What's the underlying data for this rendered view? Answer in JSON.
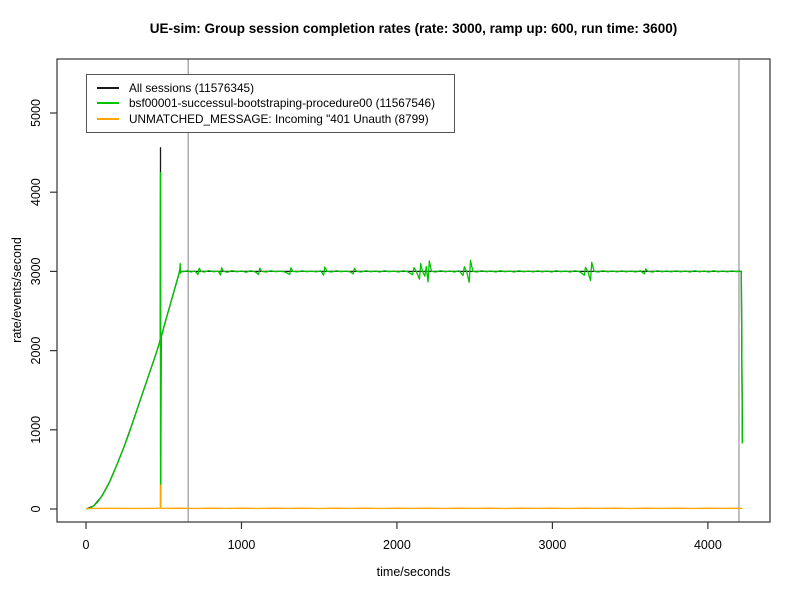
{
  "chart_data": {
    "type": "line",
    "title": "UE-sim: Group session completion rates (rate: 3000, ramp up: 600, run time: 3600)",
    "xlabel": "time/seconds",
    "ylabel": "rate/events/second",
    "x_ticks": [
      0,
      1000,
      2000,
      3000,
      4000
    ],
    "y_ticks": [
      0,
      1000,
      2000,
      3000,
      4000,
      5000
    ],
    "xlim": [
      -186,
      4399
    ],
    "ylim": [
      -164,
      5682
    ],
    "grid": false,
    "legend_position": "top-left",
    "box_color": "#333333",
    "markers": {
      "vlines": [
        657,
        4200
      ],
      "color": "#808080"
    },
    "series": [
      {
        "name": "all-sessions",
        "label": "All sessions (11576345)",
        "color": "#1a1a1a",
        "points": [
          [
            2,
            0
          ],
          [
            50,
            40
          ],
          [
            100,
            155
          ],
          [
            150,
            335
          ],
          [
            200,
            565
          ],
          [
            250,
            815
          ],
          [
            300,
            1090
          ],
          [
            350,
            1380
          ],
          [
            400,
            1670
          ],
          [
            450,
            1960
          ],
          [
            468,
            2070
          ],
          [
            478,
            2140
          ],
          [
            479,
            4560
          ],
          [
            480,
            25
          ],
          [
            484,
            2170
          ],
          [
            520,
            2430
          ],
          [
            560,
            2710
          ],
          [
            595,
            2950
          ],
          [
            602,
            3005
          ],
          [
            613,
            3000
          ],
          [
            2000,
            3000
          ],
          [
            4215,
            3000
          ],
          [
            4222,
            830
          ]
        ]
      },
      {
        "name": "bsf-bootstrapping-success",
        "label": "bsf00001-successul-bootstraping-procedure00 (11567546)",
        "color": "#00C400",
        "points": [
          [
            2,
            0
          ],
          [
            25,
            10
          ],
          [
            50,
            40
          ],
          [
            75,
            90
          ],
          [
            100,
            155
          ],
          [
            125,
            240
          ],
          [
            150,
            335
          ],
          [
            175,
            445
          ],
          [
            200,
            565
          ],
          [
            225,
            690
          ],
          [
            250,
            815
          ],
          [
            275,
            945
          ],
          [
            300,
            1090
          ],
          [
            325,
            1235
          ],
          [
            350,
            1380
          ],
          [
            375,
            1525
          ],
          [
            400,
            1670
          ],
          [
            425,
            1815
          ],
          [
            450,
            1960
          ],
          [
            468,
            2070
          ],
          [
            476,
            2125
          ],
          [
            478,
            2140
          ],
          [
            479,
            4248
          ],
          [
            480,
            25
          ],
          [
            481,
            2080
          ],
          [
            484,
            2170
          ],
          [
            500,
            2290
          ],
          [
            520,
            2430
          ],
          [
            540,
            2570
          ],
          [
            560,
            2710
          ],
          [
            580,
            2850
          ],
          [
            595,
            2950
          ],
          [
            602,
            3005
          ],
          [
            606,
            3100
          ],
          [
            609,
            2975
          ],
          [
            613,
            3000
          ],
          [
            625,
            2995
          ],
          [
            650,
            3008
          ],
          [
            675,
            2992
          ],
          [
            700,
            3005
          ],
          [
            720,
            2960
          ],
          [
            728,
            3040
          ],
          [
            740,
            3000
          ],
          [
            760,
            2992
          ],
          [
            790,
            3010
          ],
          [
            820,
            2995
          ],
          [
            850,
            3005
          ],
          [
            865,
            2955
          ],
          [
            872,
            3045
          ],
          [
            885,
            3000
          ],
          [
            910,
            2990
          ],
          [
            940,
            3010
          ],
          [
            970,
            2995
          ],
          [
            1000,
            3005
          ],
          [
            1030,
            2990
          ],
          [
            1060,
            3008
          ],
          [
            1090,
            2992
          ],
          [
            1110,
            2960
          ],
          [
            1118,
            3042
          ],
          [
            1130,
            3000
          ],
          [
            1160,
            2993
          ],
          [
            1190,
            3008
          ],
          [
            1220,
            2996
          ],
          [
            1250,
            3004
          ],
          [
            1280,
            2992
          ],
          [
            1310,
            2962
          ],
          [
            1318,
            3045
          ],
          [
            1330,
            3000
          ],
          [
            1360,
            2994
          ],
          [
            1390,
            3006
          ],
          [
            1420,
            2996
          ],
          [
            1450,
            3004
          ],
          [
            1480,
            2994
          ],
          [
            1510,
            3006
          ],
          [
            1528,
            2952
          ],
          [
            1536,
            3055
          ],
          [
            1550,
            3000
          ],
          [
            1580,
            2993
          ],
          [
            1610,
            3007
          ],
          [
            1640,
            2996
          ],
          [
            1670,
            3004
          ],
          [
            1700,
            2994
          ],
          [
            1718,
            2968
          ],
          [
            1726,
            3038
          ],
          [
            1740,
            3000
          ],
          [
            1770,
            2993
          ],
          [
            1800,
            3007
          ],
          [
            1830,
            2995
          ],
          [
            1860,
            3005
          ],
          [
            1890,
            2993
          ],
          [
            1920,
            3007
          ],
          [
            1950,
            2996
          ],
          [
            1980,
            3004
          ],
          [
            2010,
            2992
          ],
          [
            2040,
            3008
          ],
          [
            2070,
            2995
          ],
          [
            2100,
            2958
          ],
          [
            2110,
            3048
          ],
          [
            2125,
            2995
          ],
          [
            2145,
            2902
          ],
          [
            2153,
            3098
          ],
          [
            2165,
            3000
          ],
          [
            2180,
            2940
          ],
          [
            2188,
            3060
          ],
          [
            2200,
            2868
          ],
          [
            2208,
            3132
          ],
          [
            2222,
            3000
          ],
          [
            2250,
            2992
          ],
          [
            2280,
            3008
          ],
          [
            2310,
            2995
          ],
          [
            2340,
            3005
          ],
          [
            2370,
            2993
          ],
          [
            2400,
            3007
          ],
          [
            2425,
            2948
          ],
          [
            2433,
            3058
          ],
          [
            2448,
            3000
          ],
          [
            2465,
            2862
          ],
          [
            2473,
            3140
          ],
          [
            2488,
            3000
          ],
          [
            2515,
            2993
          ],
          [
            2545,
            3007
          ],
          [
            2575,
            2995
          ],
          [
            2605,
            3005
          ],
          [
            2635,
            2993
          ],
          [
            2665,
            3007
          ],
          [
            2695,
            2996
          ],
          [
            2725,
            3004
          ],
          [
            2755,
            2993
          ],
          [
            2785,
            3007
          ],
          [
            2815,
            2995
          ],
          [
            2845,
            3005
          ],
          [
            2875,
            2994
          ],
          [
            2905,
            3006
          ],
          [
            2935,
            2995
          ],
          [
            2965,
            3005
          ],
          [
            2995,
            2992
          ],
          [
            3025,
            3008
          ],
          [
            3055,
            2996
          ],
          [
            3085,
            3004
          ],
          [
            3115,
            2993
          ],
          [
            3145,
            3007
          ],
          [
            3175,
            2995
          ],
          [
            3205,
            2952
          ],
          [
            3213,
            3052
          ],
          [
            3228,
            2995
          ],
          [
            3245,
            2885
          ],
          [
            3253,
            3115
          ],
          [
            3268,
            3000
          ],
          [
            3295,
            2993
          ],
          [
            3325,
            3007
          ],
          [
            3355,
            2995
          ],
          [
            3385,
            3005
          ],
          [
            3415,
            2994
          ],
          [
            3445,
            3006
          ],
          [
            3475,
            2995
          ],
          [
            3505,
            3005
          ],
          [
            3535,
            2993
          ],
          [
            3565,
            3007
          ],
          [
            3592,
            2968
          ],
          [
            3600,
            3032
          ],
          [
            3615,
            3000
          ],
          [
            3645,
            2993
          ],
          [
            3675,
            3007
          ],
          [
            3705,
            2995
          ],
          [
            3735,
            3005
          ],
          [
            3765,
            2994
          ],
          [
            3795,
            3006
          ],
          [
            3825,
            2995
          ],
          [
            3855,
            3005
          ],
          [
            3885,
            2993
          ],
          [
            3915,
            3007
          ],
          [
            3945,
            2995
          ],
          [
            3975,
            3005
          ],
          [
            4005,
            2993
          ],
          [
            4035,
            3007
          ],
          [
            4065,
            2995
          ],
          [
            4095,
            3005
          ],
          [
            4125,
            2994
          ],
          [
            4155,
            3006
          ],
          [
            4185,
            2996
          ],
          [
            4205,
            3004
          ],
          [
            4215,
            3000
          ],
          [
            4222,
            830
          ]
        ]
      },
      {
        "name": "unmatched-message",
        "label": "UNMATCHED_MESSAGE: Incoming \"401 Unauth (8799)",
        "color": "#FFA500",
        "points": [
          [
            0,
            6
          ],
          [
            150,
            9
          ],
          [
            300,
            6
          ],
          [
            450,
            9
          ],
          [
            477,
            12
          ],
          [
            479,
            20
          ],
          [
            480,
            300
          ],
          [
            482,
            12
          ],
          [
            490,
            8
          ],
          [
            600,
            10
          ],
          [
            700,
            6
          ],
          [
            800,
            10
          ],
          [
            900,
            7
          ],
          [
            1000,
            10
          ],
          [
            1100,
            6
          ],
          [
            1200,
            10
          ],
          [
            1300,
            7
          ],
          [
            1400,
            10
          ],
          [
            1500,
            6
          ],
          [
            1600,
            10
          ],
          [
            1700,
            7
          ],
          [
            1800,
            10
          ],
          [
            1900,
            6
          ],
          [
            2000,
            10
          ],
          [
            2100,
            7
          ],
          [
            2200,
            10
          ],
          [
            2300,
            6
          ],
          [
            2400,
            10
          ],
          [
            2500,
            7
          ],
          [
            2600,
            10
          ],
          [
            2700,
            6
          ],
          [
            2800,
            10
          ],
          [
            2900,
            7
          ],
          [
            3000,
            10
          ],
          [
            3100,
            6
          ],
          [
            3200,
            10
          ],
          [
            3300,
            7
          ],
          [
            3400,
            10
          ],
          [
            3500,
            6
          ],
          [
            3600,
            10
          ],
          [
            3700,
            7
          ],
          [
            3800,
            10
          ],
          [
            3900,
            6
          ],
          [
            4000,
            10
          ],
          [
            4100,
            7
          ],
          [
            4200,
            10
          ],
          [
            4223,
            6
          ]
        ]
      }
    ]
  }
}
